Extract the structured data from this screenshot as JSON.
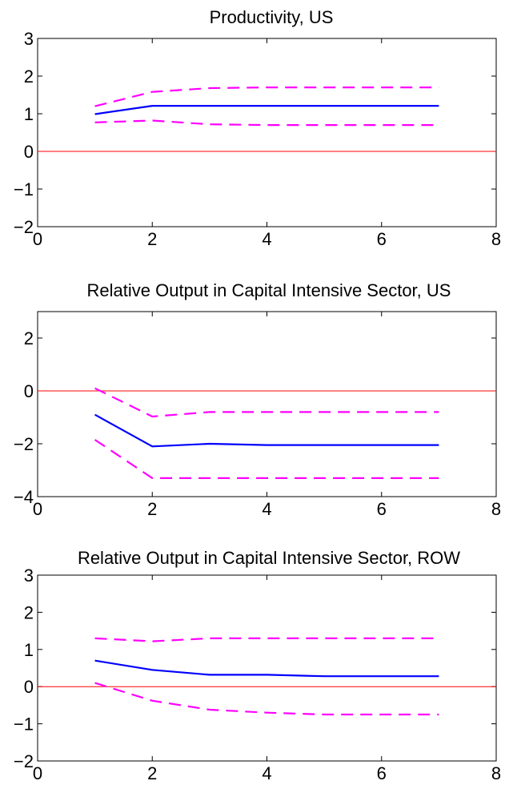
{
  "chart_data": [
    {
      "type": "line",
      "title": "Productivity, US",
      "xlim": [
        0,
        8
      ],
      "ylim": [
        -2,
        3
      ],
      "xticks": [
        0,
        2,
        4,
        6,
        8
      ],
      "yticks": [
        -2,
        -1,
        0,
        1,
        2,
        3
      ],
      "x": [
        1,
        2,
        3,
        4,
        5,
        6,
        7
      ],
      "series": [
        {
          "role": "upper-band",
          "color": "#ff00ff",
          "style": "dashed",
          "values": [
            1.2,
            1.58,
            1.68,
            1.7,
            1.7,
            1.7,
            1.7
          ]
        },
        {
          "role": "estimate",
          "color": "#0000ff",
          "style": "solid",
          "values": [
            0.99,
            1.21,
            1.21,
            1.21,
            1.21,
            1.21,
            1.21
          ]
        },
        {
          "role": "lower-band",
          "color": "#ff00ff",
          "style": "dashed",
          "values": [
            0.77,
            0.82,
            0.72,
            0.7,
            0.7,
            0.7,
            0.7
          ]
        }
      ],
      "reference_line": {
        "y": 0,
        "color": "#ff0000"
      }
    },
    {
      "type": "line",
      "title": "Relative Output in Capital Intensive Sector, US",
      "xlim": [
        0,
        8
      ],
      "ylim": [
        -4,
        3
      ],
      "xticks": [
        0,
        2,
        4,
        6,
        8
      ],
      "yticks": [
        -4,
        -2,
        0,
        2
      ],
      "x": [
        1,
        2,
        3,
        4,
        5,
        6,
        7
      ],
      "series": [
        {
          "role": "upper-band",
          "color": "#ff00ff",
          "style": "dashed",
          "values": [
            0.1,
            -0.97,
            -0.8,
            -0.8,
            -0.8,
            -0.8,
            -0.8
          ]
        },
        {
          "role": "estimate",
          "color": "#0000ff",
          "style": "solid",
          "values": [
            -0.9,
            -2.1,
            -2.0,
            -2.05,
            -2.05,
            -2.05,
            -2.05
          ]
        },
        {
          "role": "lower-band",
          "color": "#ff00ff",
          "style": "dashed",
          "values": [
            -1.85,
            -3.3,
            -3.3,
            -3.3,
            -3.3,
            -3.3,
            -3.3
          ]
        }
      ],
      "reference_line": {
        "y": 0,
        "color": "#ff0000"
      }
    },
    {
      "type": "line",
      "title": "Relative Output in Capital Intensive Sector, ROW",
      "xlim": [
        0,
        8
      ],
      "ylim": [
        -2,
        3
      ],
      "xticks": [
        0,
        2,
        4,
        6,
        8
      ],
      "yticks": [
        -2,
        -1,
        0,
        1,
        2,
        3
      ],
      "x": [
        1,
        2,
        3,
        4,
        5,
        6,
        7
      ],
      "series": [
        {
          "role": "upper-band",
          "color": "#ff00ff",
          "style": "dashed",
          "values": [
            1.3,
            1.22,
            1.3,
            1.3,
            1.3,
            1.3,
            1.3
          ]
        },
        {
          "role": "estimate",
          "color": "#0000ff",
          "style": "solid",
          "values": [
            0.7,
            0.45,
            0.32,
            0.32,
            0.28,
            0.28,
            0.28
          ]
        },
        {
          "role": "lower-band",
          "color": "#ff00ff",
          "style": "dashed",
          "values": [
            0.1,
            -0.38,
            -0.62,
            -0.7,
            -0.75,
            -0.75,
            -0.75
          ]
        }
      ],
      "reference_line": {
        "y": 0,
        "color": "#ff0000"
      }
    }
  ]
}
